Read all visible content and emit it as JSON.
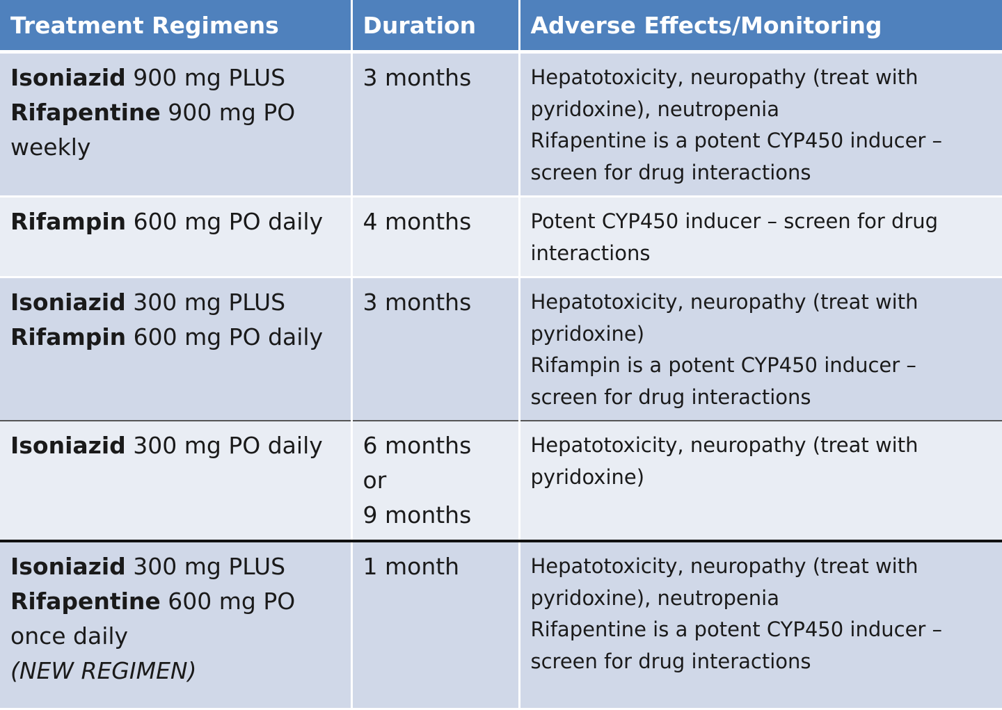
{
  "headers": {
    "regimen": "Treatment Regimens",
    "duration": "Duration",
    "effects": "Adverse Effects/Monitoring"
  },
  "rows": [
    {
      "regimen": [
        {
          "drug": "Isoniazid",
          "dose": " 900 mg PLUS"
        },
        {
          "drug": "Rifapentine",
          "dose": " 900 mg PO"
        },
        {
          "drug": "",
          "dose": "weekly"
        }
      ],
      "duration": [
        "3 months"
      ],
      "effects": [
        "Hepatotoxicity, neuropathy (treat with",
        "pyridoxine), neutropenia",
        "Rifapentine is a potent CYP450 inducer –",
        "screen for drug interactions"
      ]
    },
    {
      "regimen": [
        {
          "drug": "Rifampin",
          "dose": " 600 mg PO daily"
        }
      ],
      "duration": [
        "4 months"
      ],
      "effects": [
        "Potent CYP450 inducer – screen for drug",
        "interactions"
      ]
    },
    {
      "regimen": [
        {
          "drug": "Isoniazid",
          "dose": " 300 mg PLUS"
        },
        {
          "drug": "Rifampin",
          "dose": " 600 mg PO daily"
        }
      ],
      "duration": [
        "3 months"
      ],
      "effects": [
        "Hepatotoxicity, neuropathy (treat with",
        "pyridoxine)",
        "Rifampin is a potent CYP450 inducer –",
        "screen for drug interactions"
      ]
    },
    {
      "regimen": [
        {
          "drug": "Isoniazid",
          "dose": " 300 mg PO daily"
        }
      ],
      "duration": [
        "6 months",
        "or",
        "9 months"
      ],
      "effects": [
        "Hepatotoxicity, neuropathy (treat with",
        "pyridoxine)"
      ]
    },
    {
      "regimen": [
        {
          "drug": "Isoniazid",
          "dose": " 300 mg PLUS"
        },
        {
          "drug": "Rifapentine",
          "dose": " 600 mg PO"
        },
        {
          "drug": "",
          "dose": "once daily"
        }
      ],
      "regimen_note": "(NEW REGIMEN)",
      "duration": [
        "1 month"
      ],
      "effects": [
        "Hepatotoxicity, neuropathy (treat with",
        "pyridoxine), neutropenia",
        "Rifapentine is a potent CYP450 inducer –",
        "screen for drug interactions"
      ]
    }
  ],
  "colors": {
    "header_bg": "#4f81bd",
    "header_text": "#ffffff",
    "row_dark": "#d0d8e8",
    "row_light": "#e9edf4"
  }
}
